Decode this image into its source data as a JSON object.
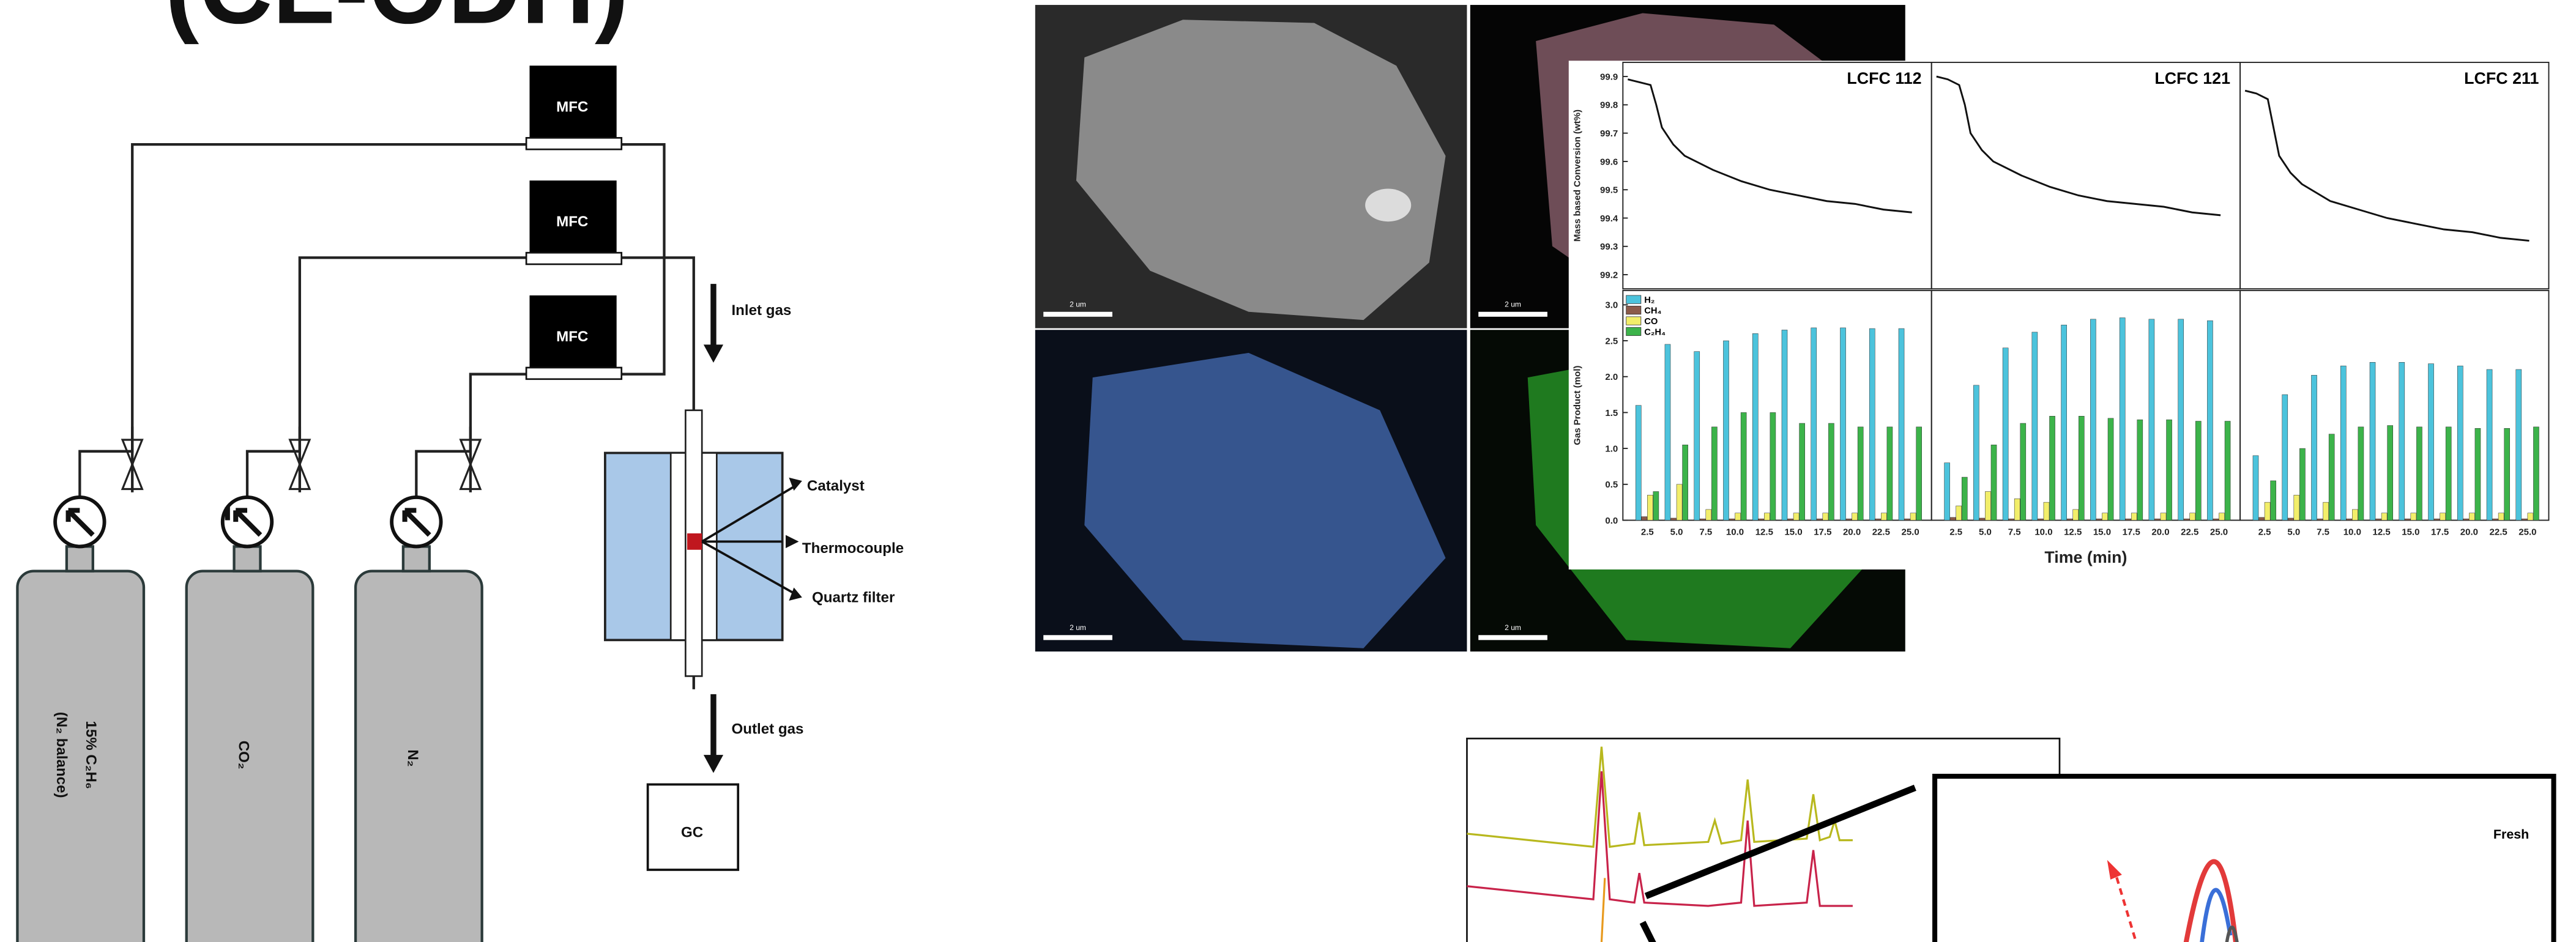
{
  "title": "(CL-ODH)",
  "diagram": {
    "mfc": [
      "MFC",
      "MFC",
      "MFC"
    ],
    "inlet": "Inlet gas",
    "outlet": "Outlet gas",
    "catalyst": "Catalyst",
    "thermocouple": "Thermocouple",
    "quartz": "Quartz filter",
    "gc": "GC",
    "cylinders": [
      [
        "15% C₂H₆",
        "(N₂ balance)"
      ],
      [
        "CO₂"
      ],
      [
        "N₂"
      ]
    ]
  },
  "sem": {
    "scale_labels": [
      "2 um",
      "2 um",
      "2 um",
      "2 um"
    ]
  },
  "chart_data": [
    {
      "type": "line",
      "ylabel": "Mass based Conversion (wt%)",
      "ylim": [
        99.15,
        99.95
      ],
      "yticks": [
        99.2,
        99.3,
        99.4,
        99.5,
        99.6,
        99.7,
        99.8,
        99.9
      ],
      "xlim": [
        0,
        26
      ],
      "x": [
        0,
        1,
        2,
        2.5,
        3,
        4,
        5,
        7.5,
        10,
        12.5,
        15,
        17.5,
        20,
        22.5,
        25
      ],
      "series": [
        {
          "name": "LCFC 112",
          "color": "#111111",
          "values": [
            99.89,
            99.88,
            99.87,
            99.8,
            99.72,
            99.66,
            99.62,
            99.57,
            99.53,
            99.5,
            99.48,
            99.46,
            99.45,
            99.43,
            99.42
          ]
        },
        {
          "name": "LCFC 121",
          "color": "#111111",
          "values": [
            99.9,
            99.89,
            99.87,
            99.8,
            99.7,
            99.64,
            99.6,
            99.55,
            99.51,
            99.48,
            99.46,
            99.45,
            99.44,
            99.42,
            99.41
          ]
        },
        {
          "name": "LCFC 211",
          "color": "#111111",
          "values": [
            99.85,
            99.84,
            99.82,
            99.72,
            99.62,
            99.56,
            99.52,
            99.46,
            99.43,
            99.4,
            99.38,
            99.36,
            99.35,
            99.33,
            99.32
          ]
        }
      ]
    },
    {
      "type": "bar",
      "ylabel": "Gas Product (mol)",
      "xlabel": "Time (min)",
      "ylim": [
        0,
        3.2
      ],
      "yticks": [
        {
          "value": 0,
          "label": "0.0"
        },
        {
          "value": 0.5,
          "label": "0.5"
        },
        {
          "value": 1,
          "label": "1.0"
        },
        {
          "value": 1.5,
          "label": "1.5"
        },
        {
          "value": 2,
          "label": "2.0"
        },
        {
          "value": 2.5,
          "label": "2.5"
        },
        {
          "value": 3,
          "label": "3.0"
        }
      ],
      "categories": [
        "2.5",
        "5.0",
        "7.5",
        "10.0",
        "12.5",
        "15.0",
        "17.5",
        "20.0",
        "22.5",
        "25.0"
      ],
      "series": [
        {
          "name": "H₂",
          "color": "#4cc3dc",
          "values": [
            [
              1.6,
              2.45,
              2.35,
              2.5,
              2.6,
              2.65,
              2.68,
              2.68,
              2.67,
              2.67
            ],
            [
              0.8,
              1.88,
              2.4,
              2.62,
              2.72,
              2.8,
              2.82,
              2.8,
              2.8,
              2.78
            ],
            [
              0.9,
              1.75,
              2.02,
              2.15,
              2.2,
              2.2,
              2.18,
              2.15,
              2.1,
              2.1
            ]
          ]
        },
        {
          "name": "CH₄",
          "color": "#8b5a4a",
          "values": [
            [
              0.05,
              0.03,
              0.02,
              0.02,
              0.02,
              0.02,
              0.02,
              0.02,
              0.02,
              0.02
            ],
            [
              0.04,
              0.03,
              0.02,
              0.02,
              0.02,
              0.02,
              0.02,
              0.02,
              0.02,
              0.02
            ],
            [
              0.04,
              0.03,
              0.02,
              0.02,
              0.02,
              0.02,
              0.02,
              0.02,
              0.02,
              0.02
            ]
          ]
        },
        {
          "name": "CO",
          "color": "#f2ee6a",
          "values": [
            [
              0.35,
              0.5,
              0.15,
              0.1,
              0.1,
              0.1,
              0.1,
              0.1,
              0.1,
              0.1
            ],
            [
              0.2,
              0.4,
              0.3,
              0.25,
              0.15,
              0.1,
              0.1,
              0.1,
              0.1,
              0.1
            ],
            [
              0.25,
              0.35,
              0.25,
              0.15,
              0.1,
              0.1,
              0.1,
              0.1,
              0.1,
              0.1
            ]
          ]
        },
        {
          "name": "C₂H₄",
          "color": "#3cb34a",
          "values": [
            [
              0.4,
              1.05,
              1.3,
              1.5,
              1.5,
              1.35,
              1.35,
              1.3,
              1.3,
              1.3
            ],
            [
              0.6,
              1.05,
              1.35,
              1.45,
              1.45,
              1.42,
              1.4,
              1.4,
              1.38,
              1.38
            ],
            [
              0.55,
              1.0,
              1.2,
              1.3,
              1.32,
              1.3,
              1.3,
              1.28,
              1.28,
              1.3
            ]
          ]
        }
      ]
    }
  ],
  "xrd": {
    "label": "Fresh"
  }
}
